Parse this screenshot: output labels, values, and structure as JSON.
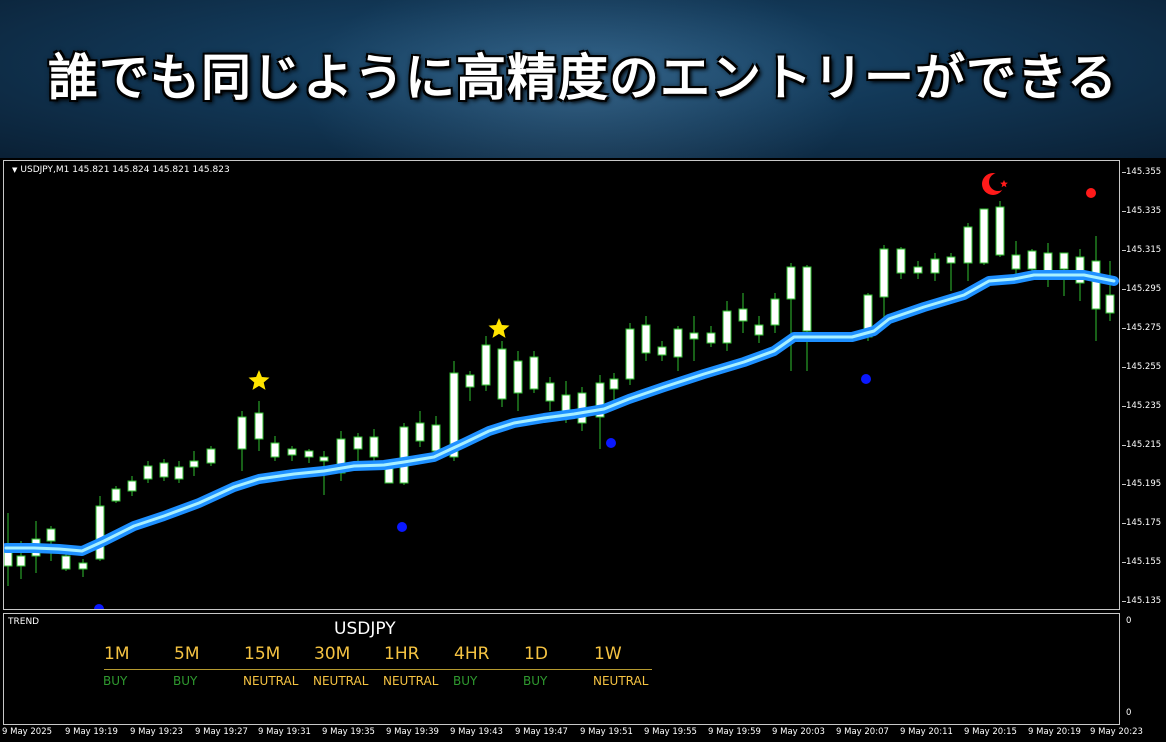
{
  "banner": {
    "title": "誰でも同じように高精度のエントリーができる"
  },
  "chart": {
    "symbol_label": "USDJPY,M1  145.821 145.824 145.821 145.823",
    "price_ticks": [
      "145.355",
      "145.335",
      "145.315",
      "145.295",
      "145.275",
      "145.255",
      "145.235",
      "145.215",
      "145.195",
      "145.175",
      "145.155",
      "145.135"
    ],
    "time_ticks": [
      "9 May 2025",
      "9 May 19:19",
      "9 May 19:23",
      "9 May 19:27",
      "9 May 19:31",
      "9 May 19:35",
      "9 May 19:39",
      "9 May 19:43",
      "9 May 19:47",
      "9 May 19:51",
      "9 May 19:55",
      "9 May 19:59",
      "9 May 20:03",
      "9 May 20:07",
      "9 May 20:11",
      "9 May 20:15",
      "9 May 20:19",
      "9 May 20:23"
    ],
    "colors": {
      "bull_body": "#ffffff",
      "wick": "#2fbf2f",
      "ma_line": "#1e90ff",
      "ma_core": "#a8f0ff",
      "star": "#ffe400",
      "dot_blue": "#0a18ff",
      "dot_red": "#ff1a1a"
    }
  },
  "trend": {
    "label": "TREND",
    "symbol": "USDJPY",
    "scale_top": "0",
    "scale_bottom": "0",
    "timeframes": [
      {
        "tf": "1M",
        "signal": "BUY",
        "kind": "buy"
      },
      {
        "tf": "5M",
        "signal": "BUY",
        "kind": "buy"
      },
      {
        "tf": "15M",
        "signal": "NEUTRAL",
        "kind": "neutral"
      },
      {
        "tf": "30M",
        "signal": "NEUTRAL",
        "kind": "neutral"
      },
      {
        "tf": "1HR",
        "signal": "NEUTRAL",
        "kind": "neutral"
      },
      {
        "tf": "4HR",
        "signal": "BUY",
        "kind": "buy"
      },
      {
        "tf": "1D",
        "signal": "BUY",
        "kind": "buy"
      },
      {
        "tf": "1W",
        "signal": "NEUTRAL",
        "kind": "neutral"
      }
    ]
  }
}
